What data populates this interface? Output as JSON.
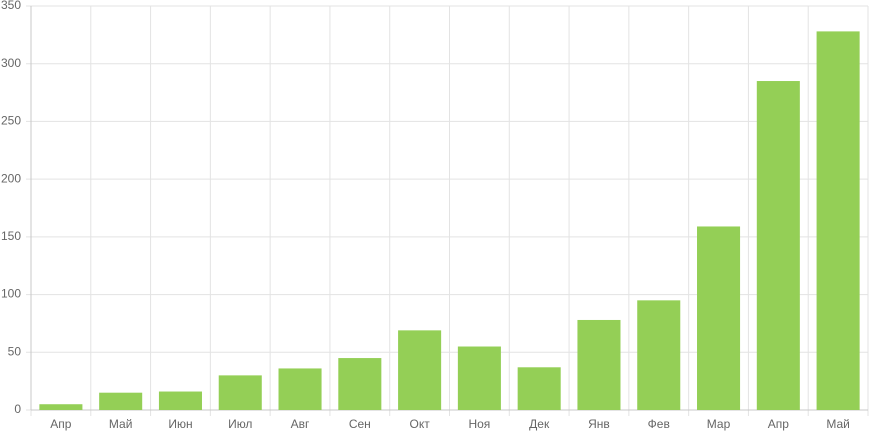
{
  "chart_data": {
    "type": "bar",
    "categories": [
      "Апр",
      "Май",
      "Июн",
      "Июл",
      "Авг",
      "Сен",
      "Окт",
      "Ноя",
      "Дек",
      "Янв",
      "Фев",
      "Мар",
      "Апр",
      "Май"
    ],
    "values": [
      5,
      15,
      16,
      30,
      36,
      45,
      69,
      55,
      37,
      78,
      95,
      159,
      285,
      328
    ],
    "color": "#94cf56",
    "ylim": [
      0,
      350
    ],
    "yticks": [
      0,
      50,
      100,
      150,
      200,
      250,
      300,
      350
    ],
    "grid": true
  }
}
